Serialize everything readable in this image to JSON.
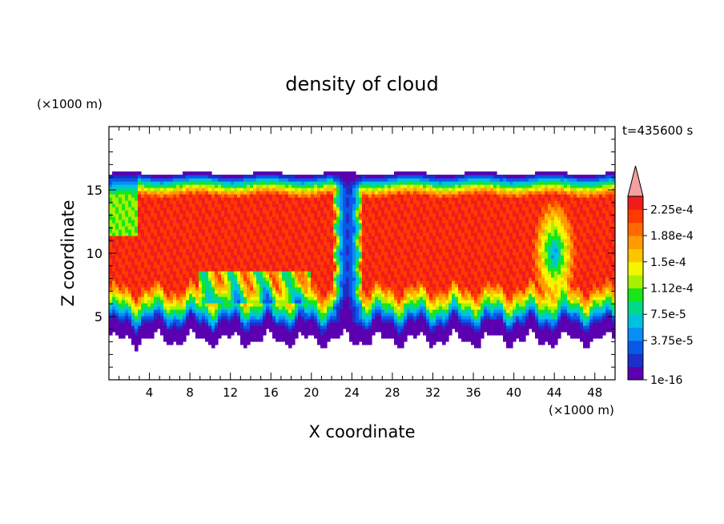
{
  "chart_data": {
    "type": "heatmap",
    "title": "density of cloud",
    "time_label": "t=435600 s",
    "xlabel": "X coordinate",
    "ylabel": "Z coordinate",
    "x_unit_label": "(×1000 m)",
    "y_unit_label": "(×1000 m)",
    "xlim": [
      0,
      50
    ],
    "ylim": [
      0,
      20
    ],
    "x_ticks": [
      4,
      8,
      12,
      16,
      20,
      24,
      28,
      32,
      36,
      40,
      44,
      48
    ],
    "y_ticks": [
      5,
      10,
      15
    ],
    "colorbar": {
      "tick_labels": [
        "2.25e-4",
        "1.88e-4",
        "1.5e-4",
        "1.12e-4",
        "7.5e-5",
        "3.75e-5",
        "1e-16"
      ],
      "colors": [
        "#5b00b0",
        "#1d2fc8",
        "#0a58e8",
        "#0a8ef5",
        "#00c2e0",
        "#00d98a",
        "#19e619",
        "#a6f000",
        "#f5f500",
        "#ffc400",
        "#ff9a00",
        "#ff6a00",
        "#ff3a00",
        "#f01c1c"
      ],
      "overflow_color": "#f4a0a0"
    },
    "field": {
      "cloud_base_km": 4.2,
      "cloud_top_km": 16.3,
      "core_density": 0.00024
    }
  }
}
